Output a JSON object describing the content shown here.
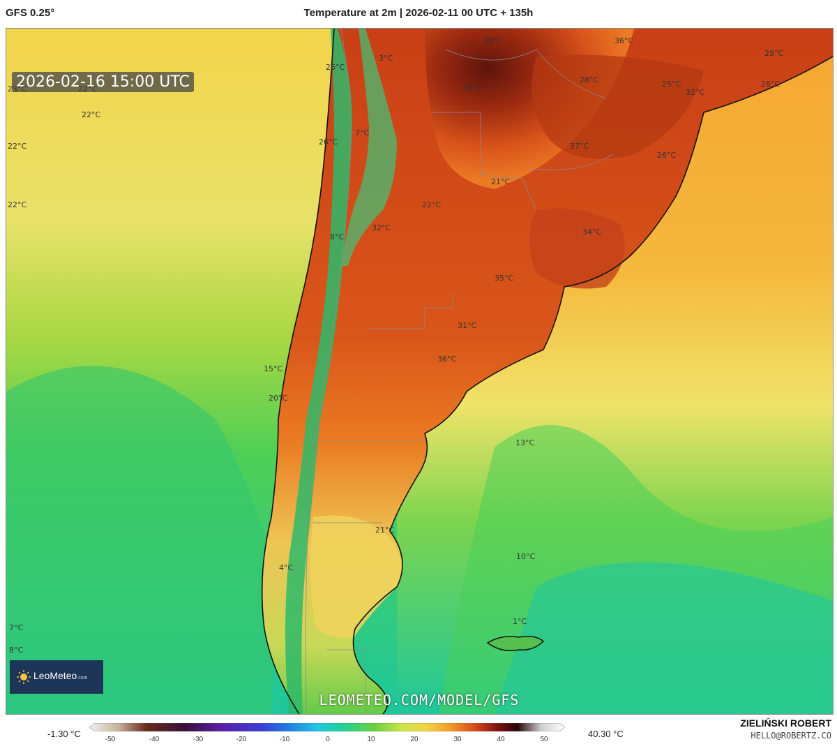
{
  "header": {
    "model": "GFS 0.25°",
    "title": "Temperature at 2m | 2026-02-11 00 UTC + 135h"
  },
  "map": {
    "valid_time": "2026-02-16 15:00 UTC",
    "labels": [
      "23°C",
      "22°C",
      "22°C",
      "22°C",
      "22°C",
      "26°C",
      "3°C",
      "7°C",
      "26°C",
      "8°C",
      "38°C",
      "40°C",
      "36°C",
      "29°C",
      "28°C",
      "25°C",
      "32°C",
      "26°C",
      "37°C",
      "26°C",
      "21°C",
      "22°C",
      "32°C",
      "34°C",
      "35°C",
      "31°C",
      "36°C",
      "15°C",
      "20°C",
      "13°C",
      "21°C",
      "10°C",
      "4°C",
      "1°C",
      "7°C",
      "8°C"
    ],
    "watermark": "LEOMETEO.COM/MODEL/GFS",
    "logo": {
      "name": "LeoMeteo",
      "suffix": ".com"
    },
    "colors": {
      "ocean_cold": "#1fc79a",
      "ocean_mid": "#6fd13a",
      "warm": "#f6c23a",
      "hot": "#e8621e",
      "very_hot": "#7a1a10"
    }
  },
  "colorbar": {
    "min_label": "-1.30 °C",
    "max_label": "40.30 °C",
    "ticks": [
      "-50",
      "-40",
      "-30",
      "-20",
      "-10",
      "0",
      "10",
      "20",
      "30",
      "40",
      "50"
    ],
    "colors": [
      "#f0f0f0",
      "#c9b49d",
      "#6b2a1d",
      "#3a0f3a",
      "#5a1ea8",
      "#3c3cd6",
      "#1f7fe0",
      "#23c6e6",
      "#1dd19a",
      "#6bd23a",
      "#cfe64a",
      "#f3d347",
      "#f29a2a",
      "#d94a1a",
      "#7a1010",
      "#2a0606",
      "#cfcfcf",
      "#ffffff"
    ]
  },
  "footer": {
    "author": "ZIELIŃSKI ROBERT",
    "email": "HELLO@ROBERTZ.CO"
  }
}
